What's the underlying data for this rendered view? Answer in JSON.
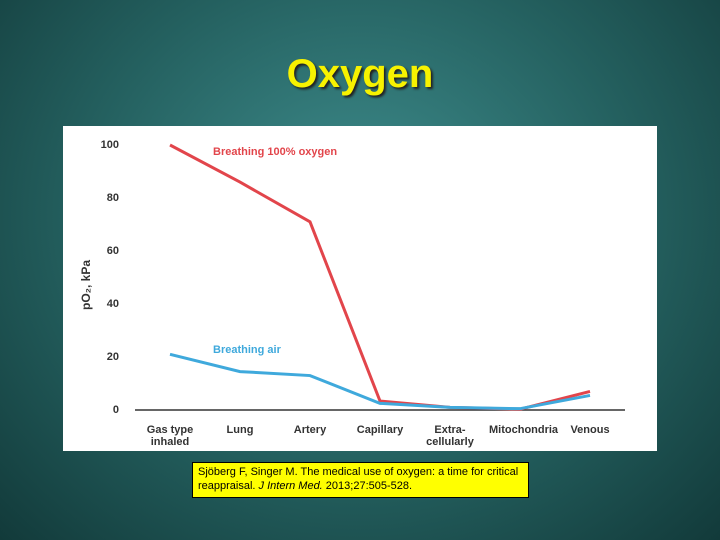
{
  "slide_title": "Oxygen",
  "chart_data": {
    "type": "line",
    "y_label": "pO₂, kPa",
    "categories": [
      "Gas type inhaled",
      "Lung",
      "Artery",
      "Capillary",
      "Extra-cellularly",
      "Mitochondria",
      "Venous"
    ],
    "series": [
      {
        "name": "Breathing 100% oxygen",
        "color": "#e2454b",
        "values": [
          100,
          86,
          71,
          3.4,
          1,
          0.3,
          7
        ]
      },
      {
        "name": "Breathing air",
        "color": "#3fa9dc",
        "values": [
          21,
          14.5,
          13,
          2.5,
          1,
          0.5,
          5.5
        ]
      }
    ],
    "ylim": [
      0,
      100
    ],
    "yticks": [
      0,
      20,
      40,
      60,
      80,
      100
    ],
    "grid": false
  },
  "citation": {
    "text": "Sjöberg F, Singer M. The medical use of oxygen: a time for critical reappraisal. ",
    "journal": "J Intern Med.",
    "details": " 2013;27:505-528."
  }
}
